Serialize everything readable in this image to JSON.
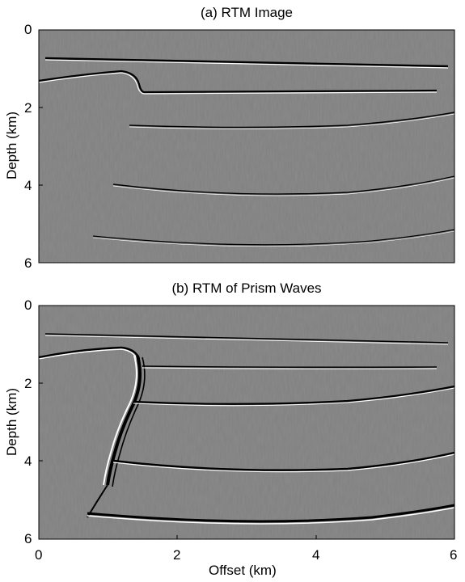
{
  "figure": {
    "panels": [
      {
        "title": "(a) RTM Image",
        "ylabel": "Depth (km)",
        "yticks": [
          "0",
          "2",
          "4",
          "6"
        ],
        "xticks_visible": false
      },
      {
        "title": "(b) RTM of Prism Waves",
        "ylabel": "Depth (km)",
        "yticks": [
          "0",
          "2",
          "4",
          "6"
        ],
        "xlabel": "Offset (km)",
        "xticks": [
          "0",
          "2",
          "4",
          "6"
        ]
      }
    ],
    "colors": {
      "background_gray": "#808080",
      "bright": "#ffffff",
      "dark": "#000000"
    }
  }
}
